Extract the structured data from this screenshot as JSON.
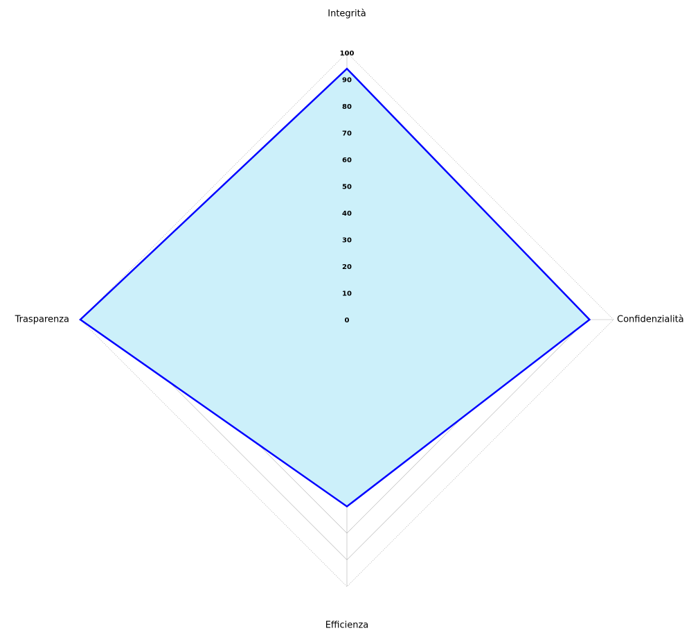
{
  "chart_data": {
    "type": "radar",
    "title": "",
    "axes": [
      "Integrità",
      "Confidenzialità",
      "Efficienza",
      "Trasparenza"
    ],
    "series": [
      {
        "values": [
          94,
          91,
          70,
          100
        ],
        "line_color": "#0000ff",
        "fill_color": "#ccf0fa"
      }
    ],
    "rlim": [
      0,
      100
    ],
    "ticks": [
      0,
      10,
      20,
      30,
      40,
      50,
      60,
      70,
      80,
      90,
      100
    ],
    "tick_labels": [
      "0",
      "10",
      "20",
      "30",
      "40",
      "50",
      "60",
      "70",
      "80",
      "90",
      "100"
    ],
    "grid": true,
    "legend": "none"
  }
}
